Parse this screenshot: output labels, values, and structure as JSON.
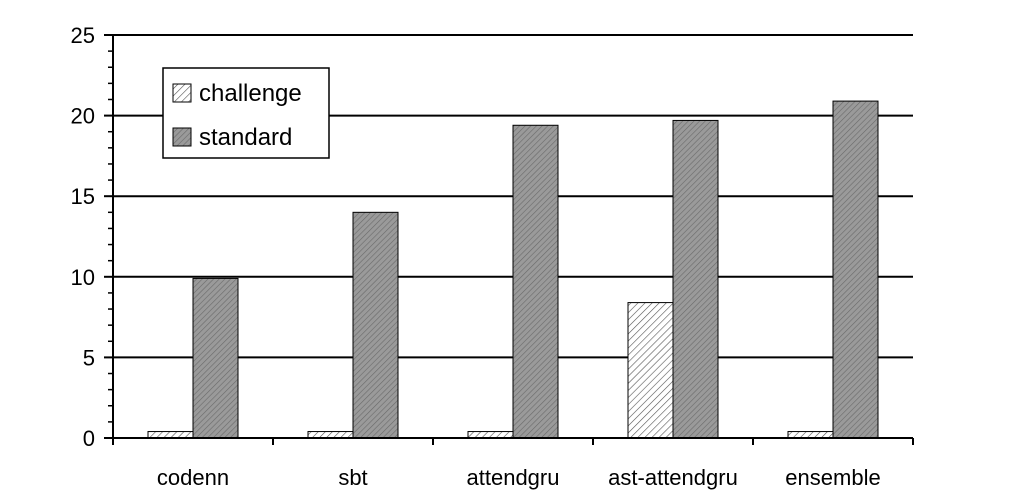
{
  "chart_data": {
    "type": "bar",
    "categories": [
      "codenn",
      "sbt",
      "attendgru",
      "ast-attendgru",
      "ensemble"
    ],
    "series": [
      {
        "name": "challenge",
        "values": [
          0.4,
          0.4,
          0.4,
          8.4,
          0.4
        ],
        "fill": "#ffffff",
        "hatch": "#555555"
      },
      {
        "name": "standard",
        "values": [
          9.9,
          14.0,
          19.4,
          19.7,
          20.9
        ],
        "fill": "#9a9a9a",
        "hatch": "#555555"
      }
    ],
    "yticks": [
      0,
      5,
      10,
      15,
      20,
      25
    ],
    "ylim": [
      0,
      25
    ],
    "grid": true,
    "legend_position": "top-left"
  }
}
